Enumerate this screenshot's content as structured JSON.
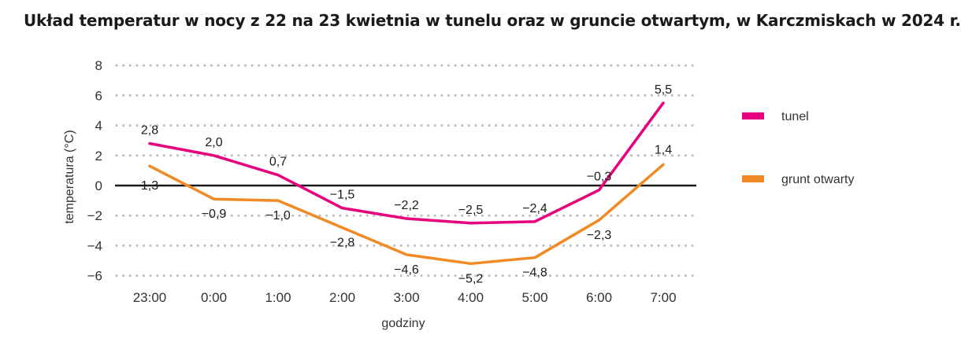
{
  "title": "Układ temperatur w nocy z 22 na 23 kwietnia w tunelu oraz w gruncie otwartym, w Karczmiskach w 2024 r.",
  "chart_data": {
    "type": "line",
    "title": "Układ temperatur w nocy z 22 na 23 kwietnia w tunelu oraz w gruncie otwartym, w Karczmiskach w 2024 r.",
    "xlabel": "godziny",
    "ylabel": "temperatura (°C)",
    "categories": [
      "23:00",
      "0:00",
      "1:00",
      "2:00",
      "3:00",
      "4:00",
      "5:00",
      "6:00",
      "7:00"
    ],
    "ylim": [
      -6,
      8
    ],
    "yticks": [
      8,
      6,
      4,
      2,
      0,
      -2,
      -4,
      -6
    ],
    "ytick_labels": [
      "8",
      "6",
      "4",
      "2",
      "0",
      "−2",
      "−4",
      "−6"
    ],
    "grid": "dotted horizontal",
    "legend_position": "right",
    "series": [
      {
        "name": "tunel",
        "color": "#e6007e",
        "values": [
          2.8,
          2.0,
          0.7,
          -1.5,
          -2.2,
          -2.5,
          -2.4,
          -0.3,
          5.5
        ],
        "labels": [
          "2,8",
          "2,0",
          "0,7",
          "−1,5",
          "−2,2",
          "−2,5",
          "−2,4",
          "−0,3",
          "5,5"
        ]
      },
      {
        "name": "grunt otwarty",
        "color": "#f08a24",
        "values": [
          1.3,
          -0.9,
          -1.0,
          -2.8,
          -4.6,
          -5.2,
          -4.8,
          -2.3,
          1.4
        ],
        "labels": [
          "1,3",
          "−0,9",
          "−1,0",
          "−2,8",
          "−4,6",
          "−5,2",
          "−4,8",
          "−2,3",
          "1,4"
        ]
      }
    ]
  }
}
